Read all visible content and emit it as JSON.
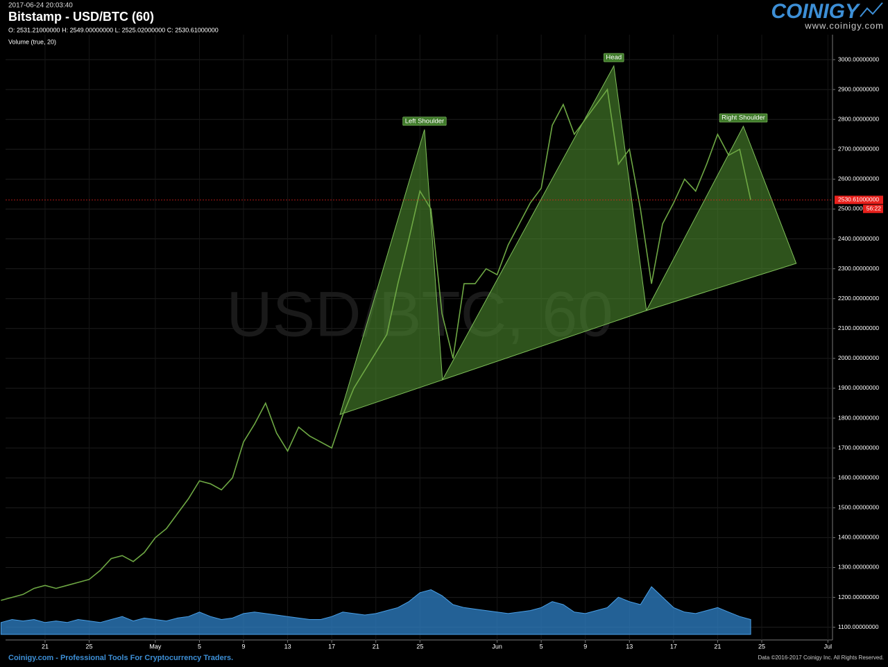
{
  "header": {
    "timestamp": "2017-06-24 20:03:40",
    "title": "Bitstamp - USD/BTC (60)",
    "ohlc": "O: 2531.21000000 H: 2549.00000000 L: 2525.02000000 C: 2530.61000000",
    "indicator": "Volume (true, 20)"
  },
  "logo": {
    "name": "COINIGY",
    "url": "www.coinigy.com"
  },
  "footer": {
    "left": "Coinigy.com - Professional Tools For Cryptocurrency Traders.",
    "right": "Data ©2016-2017 Coinigy Inc. All Rights Reserved."
  },
  "chart_data": {
    "type": "line",
    "watermark": "USD/BTC, 60",
    "color": "#6ea844",
    "x": [
      "2017-04-17",
      "2017-04-18",
      "2017-04-19",
      "2017-04-20",
      "2017-04-21",
      "2017-04-22",
      "2017-04-23",
      "2017-04-24",
      "2017-04-25",
      "2017-04-26",
      "2017-04-27",
      "2017-04-28",
      "2017-04-29",
      "2017-04-30",
      "2017-05-01",
      "2017-05-02",
      "2017-05-03",
      "2017-05-04",
      "2017-05-05",
      "2017-05-06",
      "2017-05-07",
      "2017-05-08",
      "2017-05-09",
      "2017-05-10",
      "2017-05-11",
      "2017-05-12",
      "2017-05-13",
      "2017-05-14",
      "2017-05-15",
      "2017-05-16",
      "2017-05-17",
      "2017-05-18",
      "2017-05-19",
      "2017-05-20",
      "2017-05-21",
      "2017-05-22",
      "2017-05-23",
      "2017-05-24",
      "2017-05-25",
      "2017-05-26",
      "2017-05-27",
      "2017-05-28",
      "2017-05-29",
      "2017-05-30",
      "2017-05-31",
      "2017-06-01",
      "2017-06-02",
      "2017-06-03",
      "2017-06-04",
      "2017-06-05",
      "2017-06-06",
      "2017-06-07",
      "2017-06-08",
      "2017-06-09",
      "2017-06-10",
      "2017-06-11",
      "2017-06-12",
      "2017-06-13",
      "2017-06-14",
      "2017-06-15",
      "2017-06-16",
      "2017-06-17",
      "2017-06-18",
      "2017-06-19",
      "2017-06-20",
      "2017-06-21",
      "2017-06-22",
      "2017-06-23",
      "2017-06-24"
    ],
    "values": [
      1190,
      1200,
      1210,
      1230,
      1240,
      1230,
      1240,
      1250,
      1260,
      1290,
      1330,
      1340,
      1320,
      1350,
      1400,
      1430,
      1480,
      1530,
      1590,
      1580,
      1560,
      1600,
      1720,
      1780,
      1850,
      1750,
      1690,
      1770,
      1740,
      1720,
      1700,
      1810,
      1900,
      1960,
      2020,
      2080,
      2250,
      2400,
      2560,
      2500,
      2150,
      2000,
      2250,
      2250,
      2300,
      2280,
      2380,
      2450,
      2520,
      2570,
      2780,
      2850,
      2750,
      2800,
      2850,
      2900,
      2650,
      2700,
      2500,
      2250,
      2450,
      2520,
      2600,
      2560,
      2650,
      2750,
      2680,
      2700,
      2530
    ],
    "volume": {
      "color": "#2f82c8",
      "vlim": [
        0,
        100
      ],
      "values": [
        8,
        10,
        9,
        10,
        8,
        9,
        8,
        10,
        9,
        8,
        10,
        12,
        9,
        11,
        10,
        9,
        11,
        12,
        15,
        12,
        10,
        11,
        14,
        15,
        14,
        13,
        12,
        11,
        10,
        10,
        12,
        15,
        14,
        13,
        14,
        16,
        18,
        22,
        28,
        30,
        26,
        20,
        18,
        17,
        16,
        15,
        14,
        15,
        16,
        18,
        22,
        20,
        15,
        14,
        16,
        18,
        25,
        22,
        20,
        32,
        25,
        18,
        15,
        14,
        16,
        18,
        15,
        12,
        10
      ]
    },
    "xlim": [
      "2017-04-17T10:00",
      "2017-07-01T10:00"
    ],
    "xticks": [
      {
        "value": "2017-04-21",
        "label": "21"
      },
      {
        "value": "2017-04-25",
        "label": "25"
      },
      {
        "value": "2017-05-01",
        "label": "May"
      },
      {
        "value": "2017-05-05",
        "label": "5"
      },
      {
        "value": "2017-05-09",
        "label": "9"
      },
      {
        "value": "2017-05-13",
        "label": "13"
      },
      {
        "value": "2017-05-17",
        "label": "17"
      },
      {
        "value": "2017-05-21",
        "label": "21"
      },
      {
        "value": "2017-05-25",
        "label": "25"
      },
      {
        "value": "2017-06-01",
        "label": "Jun"
      },
      {
        "value": "2017-06-05",
        "label": "5"
      },
      {
        "value": "2017-06-09",
        "label": "9"
      },
      {
        "value": "2017-06-13",
        "label": "13"
      },
      {
        "value": "2017-06-17",
        "label": "17"
      },
      {
        "value": "2017-06-21",
        "label": "21"
      },
      {
        "value": "2017-06-25",
        "label": "25"
      },
      {
        "value": "2017-07-01",
        "label": "Jul"
      }
    ],
    "ylim": [
      1076,
      3072
    ],
    "yticks": [
      {
        "value": 1100,
        "label": "1100.00000000"
      },
      {
        "value": 1200,
        "label": "1200.00000000"
      },
      {
        "value": 1300,
        "label": "1300.00000000"
      },
      {
        "value": 1400,
        "label": "1400.00000000"
      },
      {
        "value": 1500,
        "label": "1500.00000000"
      },
      {
        "value": 1600,
        "label": "1600.00000000"
      },
      {
        "value": 1700,
        "label": "1700.00000000"
      },
      {
        "value": 1800,
        "label": "1800.00000000"
      },
      {
        "value": 1900,
        "label": "1900.00000000"
      },
      {
        "value": 2000,
        "label": "2000.00000000"
      },
      {
        "value": 2100,
        "label": "2100.00000000"
      },
      {
        "value": 2200,
        "label": "2200.00000000"
      },
      {
        "value": 2300,
        "label": "2300.00000000"
      },
      {
        "value": 2400,
        "label": "2400.00000000"
      },
      {
        "value": 2500,
        "label": "2500.00000000"
      },
      {
        "value": 2600,
        "label": "2600.00000000"
      },
      {
        "value": 2700,
        "label": "2700.00000000"
      },
      {
        "value": 2800,
        "label": "2800.00000000"
      },
      {
        "value": 2900,
        "label": "2900.00000000"
      },
      {
        "value": 3000,
        "label": "3000.00000000"
      }
    ],
    "grid": true,
    "last_price": {
      "value": 2530.61,
      "label": "2530.61000000"
    },
    "last_price_color": "#e8201c",
    "countdown": "56:22",
    "pattern_color": "#4d8a2e",
    "patterns": [
      {
        "label": "Left Shoulder",
        "points": [
          [
            "2017-05-17T18:00",
            1812
          ],
          [
            "2017-05-25T10:00",
            2766
          ],
          [
            "2017-05-27T01:00",
            1928
          ]
        ]
      },
      {
        "label": "Head",
        "points": [
          [
            "2017-05-27T01:00",
            1928
          ],
          [
            "2017-06-11T14:00",
            2979
          ],
          [
            "2017-06-14T13:00",
            2160
          ]
        ]
      },
      {
        "label": "Right Shoulder",
        "points": [
          [
            "2017-06-14T13:00",
            2160
          ],
          [
            "2017-06-23T08:00",
            2777
          ],
          [
            "2017-06-28T03:00",
            2318
          ]
        ]
      }
    ]
  }
}
